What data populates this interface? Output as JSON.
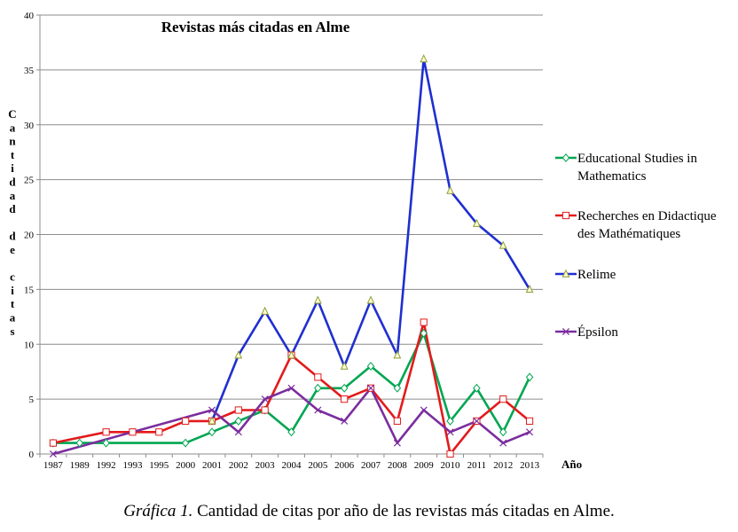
{
  "chart_data": {
    "type": "line",
    "title": "Revistas más citadas en Alme",
    "xlabel": "Año",
    "ylabel": "Cantidad de citas",
    "ylim": [
      0,
      40
    ],
    "yticks": [
      0,
      5,
      10,
      15,
      20,
      25,
      30,
      35,
      40
    ],
    "grid": "horizontal",
    "legend_position": "right",
    "categories": [
      "1987",
      "1989",
      "1992",
      "1993",
      "1995",
      "2000",
      "2001",
      "2002",
      "2003",
      "2004",
      "2005",
      "2006",
      "2007",
      "2008",
      "2009",
      "2010",
      "2011",
      "2012",
      "2013"
    ],
    "series": [
      {
        "name": "Educational Studies in Mathematics",
        "color": "#00A651",
        "marker": "diamond",
        "values": [
          1,
          1,
          1,
          null,
          null,
          1,
          2,
          3,
          4,
          2,
          6,
          6,
          8,
          6,
          11,
          3,
          6,
          2,
          7
        ]
      },
      {
        "name": "Recherches en Didactique des Mathématiques",
        "color": "#E31A1C",
        "marker": "square",
        "values": [
          1,
          null,
          2,
          2,
          2,
          3,
          3,
          4,
          4,
          9,
          7,
          5,
          6,
          3,
          12,
          0,
          3,
          5,
          3
        ]
      },
      {
        "name": "Relime",
        "color": "#1F2FD0",
        "marker": "triangle",
        "values": [
          null,
          null,
          null,
          null,
          null,
          null,
          3,
          9,
          13,
          9,
          14,
          8,
          14,
          9,
          36,
          24,
          21,
          19,
          15
        ]
      },
      {
        "name": "Épsilon",
        "color": "#7B2D9E",
        "marker": "x",
        "values": [
          0,
          null,
          null,
          null,
          null,
          null,
          4,
          2,
          5,
          6,
          4,
          3,
          6,
          1,
          4,
          2,
          3,
          1,
          2
        ]
      }
    ]
  },
  "caption": {
    "prefix": "Gráfica 1.",
    "text": " Cantidad de citas por año de las revistas más citadas en Alme."
  }
}
